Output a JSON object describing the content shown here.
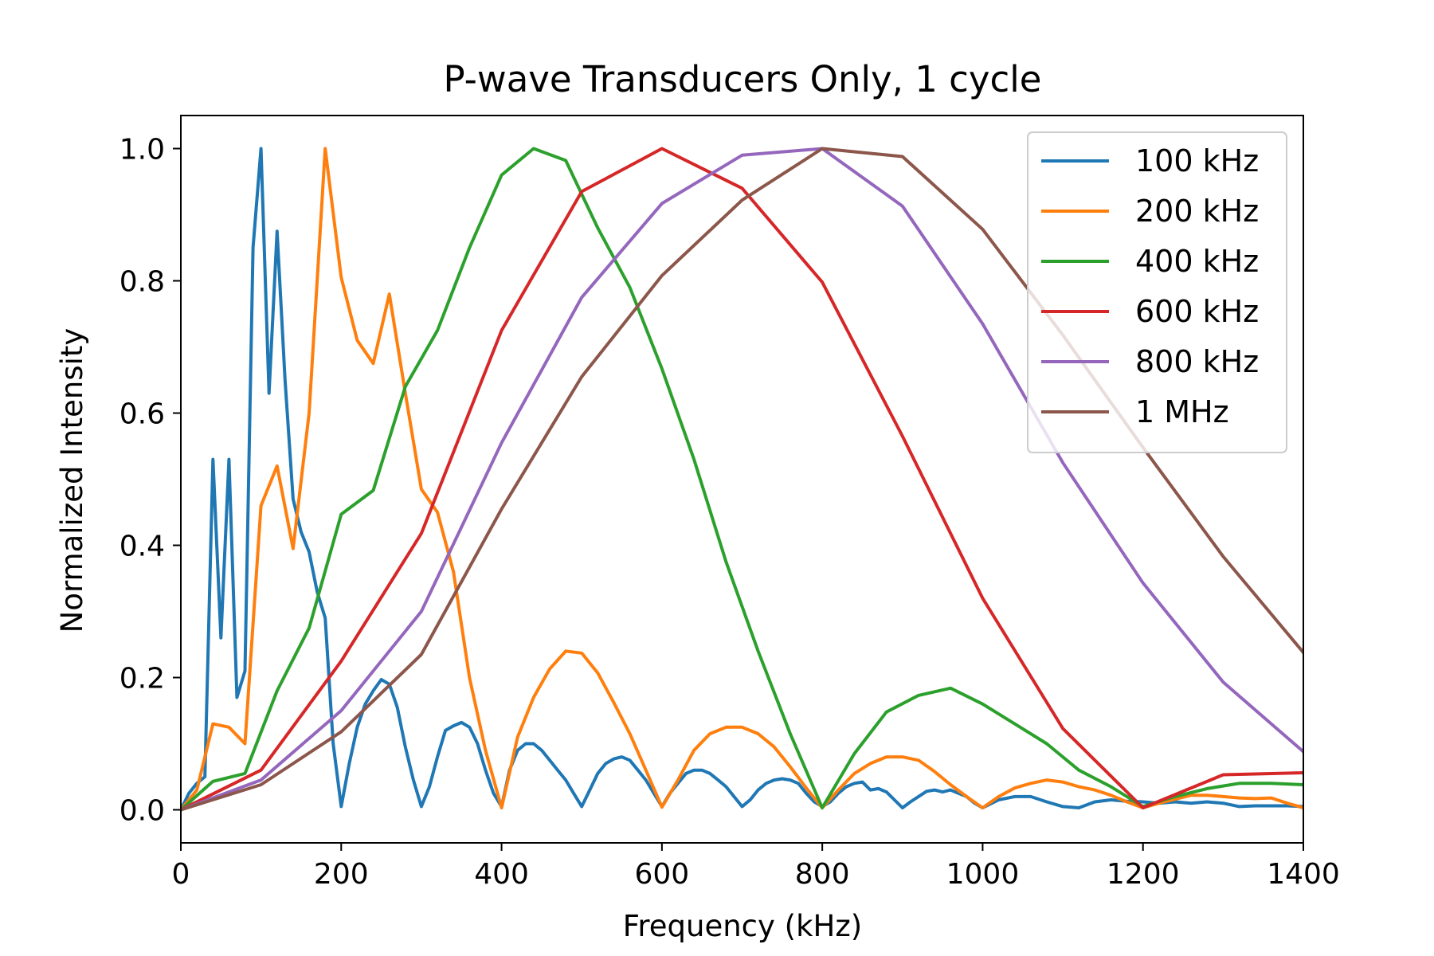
{
  "chart_data": {
    "type": "line",
    "title": "P-wave Transducers Only, 1 cycle",
    "xlabel": "Frequency (kHz)",
    "ylabel": "Normalized Intensity",
    "xlim": [
      0,
      1400
    ],
    "ylim": [
      -0.05,
      1.05
    ],
    "xticks": [
      0,
      200,
      400,
      600,
      800,
      1000,
      1200,
      1400
    ],
    "yticks": [
      0.0,
      0.2,
      0.4,
      0.6,
      0.8,
      1.0
    ],
    "xtick_labels": [
      "0",
      "200",
      "400",
      "600",
      "800",
      "1000",
      "1200",
      "1400"
    ],
    "ytick_labels": [
      "0.0",
      "0.2",
      "0.4",
      "0.6",
      "0.8",
      "1.0"
    ],
    "grid": false,
    "legend_position": "top-right",
    "series": [
      {
        "name": "100 kHz",
        "color": "#1f77b4",
        "x": [
          0,
          10,
          20,
          30,
          40,
          50,
          60,
          70,
          80,
          90,
          100,
          110,
          120,
          130,
          140,
          150,
          160,
          170,
          180,
          190,
          200,
          210,
          220,
          230,
          240,
          250,
          260,
          270,
          280,
          290,
          300,
          310,
          320,
          330,
          340,
          350,
          360,
          370,
          380,
          390,
          400,
          410,
          420,
          430,
          440,
          450,
          460,
          470,
          480,
          490,
          500,
          510,
          520,
          530,
          540,
          550,
          560,
          570,
          580,
          590,
          600,
          610,
          620,
          630,
          640,
          650,
          660,
          670,
          680,
          690,
          700,
          710,
          720,
          730,
          740,
          750,
          760,
          770,
          780,
          790,
          800,
          810,
          820,
          830,
          840,
          850,
          860,
          870,
          880,
          890,
          900,
          910,
          920,
          930,
          940,
          950,
          960,
          970,
          980,
          990,
          1000,
          1020,
          1040,
          1060,
          1080,
          1100,
          1120,
          1140,
          1160,
          1180,
          1200,
          1220,
          1240,
          1260,
          1280,
          1300,
          1320,
          1340,
          1360,
          1380,
          1400
        ],
        "y": [
          0.0,
          0.025,
          0.04,
          0.05,
          0.53,
          0.26,
          0.53,
          0.17,
          0.21,
          0.85,
          1.0,
          0.63,
          0.875,
          0.65,
          0.47,
          0.42,
          0.39,
          0.33,
          0.29,
          0.1,
          0.005,
          0.07,
          0.125,
          0.16,
          0.18,
          0.197,
          0.19,
          0.155,
          0.095,
          0.045,
          0.005,
          0.035,
          0.08,
          0.12,
          0.127,
          0.132,
          0.125,
          0.1,
          0.06,
          0.025,
          0.005,
          0.06,
          0.09,
          0.1,
          0.1,
          0.09,
          0.075,
          0.06,
          0.045,
          0.025,
          0.005,
          0.03,
          0.055,
          0.07,
          0.077,
          0.08,
          0.075,
          0.06,
          0.045,
          0.025,
          0.005,
          0.025,
          0.04,
          0.055,
          0.06,
          0.06,
          0.055,
          0.045,
          0.035,
          0.02,
          0.005,
          0.015,
          0.03,
          0.04,
          0.045,
          0.047,
          0.045,
          0.04,
          0.025,
          0.012,
          0.005,
          0.012,
          0.025,
          0.035,
          0.04,
          0.042,
          0.03,
          0.032,
          0.027,
          0.015,
          0.003,
          0.012,
          0.02,
          0.028,
          0.03,
          0.027,
          0.03,
          0.025,
          0.02,
          0.01,
          0.003,
          0.015,
          0.02,
          0.02,
          0.012,
          0.005,
          0.003,
          0.012,
          0.015,
          0.013,
          0.012,
          0.01,
          0.012,
          0.01,
          0.012,
          0.01,
          0.005,
          0.006,
          0.006,
          0.006,
          0.005
        ]
      },
      {
        "name": "200 kHz",
        "color": "#ff7f0e",
        "x": [
          0,
          20,
          40,
          60,
          80,
          100,
          120,
          140,
          160,
          180,
          200,
          220,
          240,
          260,
          280,
          300,
          320,
          340,
          360,
          380,
          400,
          420,
          440,
          460,
          480,
          500,
          520,
          540,
          560,
          580,
          600,
          620,
          640,
          660,
          680,
          700,
          720,
          740,
          760,
          780,
          800,
          820,
          840,
          860,
          880,
          900,
          920,
          940,
          960,
          980,
          1000,
          1020,
          1040,
          1060,
          1080,
          1100,
          1120,
          1140,
          1160,
          1180,
          1200,
          1220,
          1240,
          1260,
          1280,
          1300,
          1320,
          1340,
          1360,
          1380,
          1400
        ],
        "y": [
          0.0,
          0.03,
          0.13,
          0.125,
          0.1,
          0.46,
          0.52,
          0.395,
          0.6,
          1.0,
          0.805,
          0.71,
          0.675,
          0.78,
          0.63,
          0.485,
          0.45,
          0.36,
          0.2,
          0.09,
          0.003,
          0.11,
          0.17,
          0.213,
          0.24,
          0.237,
          0.207,
          0.162,
          0.115,
          0.06,
          0.004,
          0.045,
          0.09,
          0.115,
          0.125,
          0.125,
          0.115,
          0.095,
          0.065,
          0.033,
          0.003,
          0.03,
          0.055,
          0.07,
          0.08,
          0.08,
          0.075,
          0.058,
          0.038,
          0.02,
          0.003,
          0.02,
          0.033,
          0.04,
          0.045,
          0.042,
          0.035,
          0.03,
          0.022,
          0.012,
          0.003,
          0.01,
          0.016,
          0.022,
          0.022,
          0.02,
          0.018,
          0.017,
          0.018,
          0.01,
          0.003
        ]
      },
      {
        "name": "400 kHz",
        "color": "#2ca02c",
        "x": [
          0,
          40,
          80,
          120,
          160,
          200,
          240,
          280,
          320,
          360,
          400,
          440,
          480,
          520,
          560,
          600,
          640,
          680,
          720,
          760,
          800,
          840,
          880,
          920,
          960,
          1000,
          1040,
          1080,
          1120,
          1160,
          1200,
          1240,
          1280,
          1320,
          1360,
          1400
        ],
        "y": [
          0.0,
          0.043,
          0.055,
          0.18,
          0.275,
          0.447,
          0.483,
          0.64,
          0.725,
          0.85,
          0.96,
          1.0,
          0.982,
          0.88,
          0.79,
          0.667,
          0.53,
          0.375,
          0.24,
          0.115,
          0.003,
          0.085,
          0.148,
          0.173,
          0.184,
          0.16,
          0.13,
          0.1,
          0.06,
          0.035,
          0.005,
          0.02,
          0.032,
          0.04,
          0.04,
          0.038
        ]
      },
      {
        "name": "600 kHz",
        "color": "#d62728",
        "x": [
          0,
          100,
          200,
          300,
          400,
          500,
          600,
          700,
          800,
          900,
          1000,
          1100,
          1200,
          1300,
          1400
        ],
        "y": [
          0.0,
          0.06,
          0.225,
          0.418,
          0.725,
          0.935,
          1.0,
          0.94,
          0.798,
          0.565,
          0.32,
          0.123,
          0.003,
          0.053,
          0.056
        ]
      },
      {
        "name": "800 kHz",
        "color": "#9467bd",
        "x": [
          0,
          100,
          200,
          300,
          400,
          500,
          600,
          700,
          800,
          900,
          1000,
          1100,
          1200,
          1300,
          1400
        ],
        "y": [
          0.0,
          0.045,
          0.15,
          0.3,
          0.555,
          0.775,
          0.917,
          0.99,
          1.0,
          0.913,
          0.735,
          0.525,
          0.343,
          0.193,
          0.088
        ]
      },
      {
        "name": "1 MHz",
        "color": "#8c564b",
        "x": [
          0,
          100,
          200,
          300,
          400,
          500,
          600,
          700,
          800,
          900,
          1000,
          1100,
          1200,
          1300,
          1400
        ],
        "y": [
          0.0,
          0.038,
          0.118,
          0.235,
          0.455,
          0.655,
          0.808,
          0.922,
          1.0,
          0.988,
          0.878,
          0.718,
          0.548,
          0.383,
          0.238
        ]
      }
    ]
  }
}
